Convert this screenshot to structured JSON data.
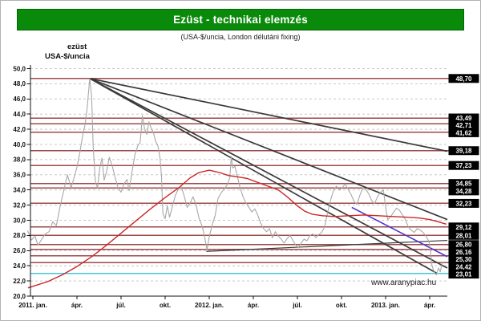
{
  "header": {
    "title": "Ezüst - technikai elemzés",
    "subtitle": "(USA-$/uncia, London délutáni fixing)"
  },
  "axis_corner": {
    "line1": "ezüst",
    "line2": "USA-$/uncia"
  },
  "footer": {
    "watermark": "www.aranypiac.hu"
  },
  "colors": {
    "banner_green": "#0a8a0a",
    "level_red": "#9c4a4a",
    "support_cyan": "#45c8d8",
    "trend_dark": "#3a3a3a",
    "trend_blue": "#4a35cc",
    "series_gray": "#a8a8a8",
    "ma_red": "#cd2626",
    "grid_dot": "#c8c8c8",
    "label_box_bg": "#000000",
    "label_box_text": "#ffffff",
    "axis_black": "#111111"
  },
  "chart_data": {
    "type": "line",
    "title": "Ezüst - technikai elemzés",
    "subtitle": "(USA-$/uncia, London délutáni fixing)",
    "ylabel": "USA-$/uncia",
    "xlabel": "",
    "ylim": [
      20,
      50
    ],
    "grid": "dotted horizontal every 2.0",
    "legend": "none",
    "x_ticks": [
      {
        "m": 0,
        "label": "2011. jan."
      },
      {
        "m": 3,
        "label": "ápr."
      },
      {
        "m": 6,
        "label": "júl."
      },
      {
        "m": 9,
        "label": "okt."
      },
      {
        "m": 12,
        "label": "2012. jan."
      },
      {
        "m": 15,
        "label": "ápr."
      },
      {
        "m": 18,
        "label": "júl."
      },
      {
        "m": 21,
        "label": "okt."
      },
      {
        "m": 24,
        "label": "2013. jan."
      },
      {
        "m": 27,
        "label": "ápr."
      }
    ],
    "y_ticks": [
      {
        "v": 20,
        "label": "20,0"
      },
      {
        "v": 22,
        "label": "22,0"
      },
      {
        "v": 24,
        "label": "24,0"
      },
      {
        "v": 26,
        "label": "26,0"
      },
      {
        "v": 28,
        "label": "28,0"
      },
      {
        "v": 30,
        "label": "30,0"
      },
      {
        "v": 32,
        "label": "32,0"
      },
      {
        "v": 34,
        "label": "34,0"
      },
      {
        "v": 36,
        "label": "36,0"
      },
      {
        "v": 38,
        "label": "38,0"
      },
      {
        "v": 40,
        "label": "40,0"
      },
      {
        "v": 42,
        "label": "42,0"
      },
      {
        "v": 44,
        "label": "44,0"
      },
      {
        "v": 46,
        "label": "46,0"
      },
      {
        "v": 48,
        "label": "48,0"
      },
      {
        "v": 50,
        "label": "50,0"
      }
    ],
    "levels": {
      "resistance_support": [
        48.7,
        43.49,
        42.71,
        41.62,
        39.18,
        37.23,
        34.85,
        34.28,
        32.23,
        29.12,
        28.01,
        26.8,
        26.16,
        25.3,
        24.42
      ],
      "cyan_support": 23.01
    },
    "price_labels": [
      {
        "text": "48,70",
        "value": 48.7
      },
      {
        "text": "43,49",
        "value": 43.49
      },
      {
        "text": "42,71",
        "value": 42.71
      },
      {
        "text": "41,62",
        "value": 41.62
      },
      {
        "text": "39,18",
        "value": 39.18
      },
      {
        "text": "37,23",
        "value": 37.23
      },
      {
        "text": "34,85",
        "value": 34.85
      },
      {
        "text": "34,28",
        "value": 34.28
      },
      {
        "text": "32,23",
        "value": 32.23
      },
      {
        "text": "29,12",
        "value": 29.12
      },
      {
        "text": "28,01",
        "value": 28.01
      },
      {
        "text": "26,80",
        "value": 26.8
      },
      {
        "text": "26,16",
        "value": 26.16
      },
      {
        "text": "25,30",
        "value": 25.3
      },
      {
        "text": "24,42",
        "value": 24.42
      },
      {
        "text": "23,01",
        "value": 23.01
      }
    ],
    "trendlines": [
      {
        "name": "fan-line-1",
        "style": "dark",
        "from": [
          3.87,
          48.7
        ],
        "to": [
          28.2,
          39.1
        ]
      },
      {
        "name": "fan-line-2",
        "style": "dark",
        "from": [
          3.87,
          48.7
        ],
        "to": [
          28.2,
          30.1
        ]
      },
      {
        "name": "fan-line-3",
        "style": "dark",
        "from": [
          3.87,
          48.7
        ],
        "to": [
          28.2,
          23.7
        ]
      },
      {
        "name": "fan-line-4",
        "style": "dark",
        "from": [
          3.87,
          48.7
        ],
        "to": [
          27.5,
          23.0
        ]
      },
      {
        "name": "rising-support-line",
        "style": "thin",
        "from": [
          11.8,
          25.9
        ],
        "to": [
          28.2,
          27.35
        ]
      },
      {
        "name": "blue-channel-line",
        "style": "blue",
        "from": [
          21.7,
          31.7
        ],
        "to": [
          28.2,
          25.2
        ]
      }
    ],
    "series": [
      {
        "name": "silver-london-pm-fixing",
        "color_key": "series_gray",
        "width": 1.1,
        "points": [
          [
            -0.35,
            28.6
          ],
          [
            -0.1,
            27.4
          ],
          [
            0.15,
            27.9
          ],
          [
            0.35,
            26.7
          ],
          [
            0.6,
            27.5
          ],
          [
            0.85,
            28.2
          ],
          [
            1.1,
            28.5
          ],
          [
            1.35,
            29.8
          ],
          [
            1.6,
            29.3
          ],
          [
            1.85,
            31.8
          ],
          [
            2.1,
            33.9
          ],
          [
            2.35,
            36.0
          ],
          [
            2.6,
            34.3
          ],
          [
            2.8,
            35.6
          ],
          [
            3.0,
            37.0
          ],
          [
            3.2,
            39.0
          ],
          [
            3.4,
            41.3
          ],
          [
            3.55,
            42.6
          ],
          [
            3.7,
            44.9
          ],
          [
            3.87,
            48.7
          ],
          [
            4.0,
            46.3
          ],
          [
            4.1,
            39.8
          ],
          [
            4.25,
            35.2
          ],
          [
            4.4,
            34.2
          ],
          [
            4.55,
            36.9
          ],
          [
            4.7,
            38.2
          ],
          [
            4.85,
            35.3
          ],
          [
            5.0,
            36.3
          ],
          [
            5.2,
            38.3
          ],
          [
            5.4,
            37.2
          ],
          [
            5.6,
            35.6
          ],
          [
            5.8,
            34.3
          ],
          [
            6.0,
            33.7
          ],
          [
            6.2,
            34.8
          ],
          [
            6.4,
            35.4
          ],
          [
            6.55,
            33.9
          ],
          [
            6.75,
            36.4
          ],
          [
            6.95,
            38.7
          ],
          [
            7.15,
            39.9
          ],
          [
            7.3,
            40.2
          ],
          [
            7.45,
            43.8
          ],
          [
            7.6,
            42.1
          ],
          [
            7.75,
            41.3
          ],
          [
            7.9,
            43.0
          ],
          [
            8.05,
            42.1
          ],
          [
            8.2,
            41.6
          ],
          [
            8.35,
            40.4
          ],
          [
            8.5,
            39.9
          ],
          [
            8.65,
            38.2
          ],
          [
            8.75,
            35.9
          ],
          [
            8.85,
            30.9
          ],
          [
            9.0,
            30.2
          ],
          [
            9.15,
            31.9
          ],
          [
            9.3,
            30.4
          ],
          [
            9.5,
            31.9
          ],
          [
            9.7,
            33.3
          ],
          [
            9.9,
            34.1
          ],
          [
            10.1,
            34.4
          ],
          [
            10.3,
            33.2
          ],
          [
            10.5,
            31.7
          ],
          [
            10.7,
            32.3
          ],
          [
            10.9,
            33.1
          ],
          [
            11.1,
            32.1
          ],
          [
            11.3,
            30.3
          ],
          [
            11.5,
            29.3
          ],
          [
            11.65,
            28.2
          ],
          [
            11.85,
            26.1
          ],
          [
            12.0,
            27.8
          ],
          [
            12.2,
            29.4
          ],
          [
            12.4,
            30.6
          ],
          [
            12.6,
            32.9
          ],
          [
            12.8,
            33.6
          ],
          [
            13.0,
            34.1
          ],
          [
            13.2,
            34.6
          ],
          [
            13.4,
            35.6
          ],
          [
            13.5,
            38.4
          ],
          [
            13.6,
            36.9
          ],
          [
            13.75,
            37.1
          ],
          [
            13.9,
            35.9
          ],
          [
            14.1,
            34.3
          ],
          [
            14.3,
            33.1
          ],
          [
            14.5,
            32.3
          ],
          [
            14.7,
            31.7
          ],
          [
            14.9,
            31.1
          ],
          [
            15.1,
            31.5
          ],
          [
            15.3,
            30.7
          ],
          [
            15.5,
            29.6
          ],
          [
            15.7,
            28.9
          ],
          [
            15.9,
            28.5
          ],
          [
            16.1,
            28.9
          ],
          [
            16.3,
            27.7
          ],
          [
            16.5,
            28.5
          ],
          [
            16.7,
            27.9
          ],
          [
            16.9,
            27.5
          ],
          [
            17.1,
            27.0
          ],
          [
            17.3,
            27.6
          ],
          [
            17.5,
            28.0
          ],
          [
            17.7,
            27.3
          ],
          [
            17.9,
            26.7
          ],
          [
            18.05,
            26.4
          ],
          [
            18.25,
            27.0
          ],
          [
            18.45,
            27.5
          ],
          [
            18.65,
            27.3
          ],
          [
            18.85,
            28.0
          ],
          [
            19.05,
            28.2
          ],
          [
            19.25,
            27.7
          ],
          [
            19.45,
            28.1
          ],
          [
            19.65,
            28.4
          ],
          [
            19.85,
            29.1
          ],
          [
            20.05,
            31.0
          ],
          [
            20.25,
            32.6
          ],
          [
            20.45,
            33.9
          ],
          [
            20.65,
            34.5
          ],
          [
            20.85,
            34.0
          ],
          [
            21.05,
            34.3
          ],
          [
            21.25,
            34.8
          ],
          [
            21.45,
            34.1
          ],
          [
            21.65,
            33.4
          ],
          [
            21.85,
            32.5
          ],
          [
            22.05,
            32.1
          ],
          [
            22.25,
            33.3
          ],
          [
            22.45,
            34.3
          ],
          [
            22.65,
            34.1
          ],
          [
            22.85,
            33.5
          ],
          [
            23.05,
            32.6
          ],
          [
            23.25,
            32.2
          ],
          [
            23.45,
            33.1
          ],
          [
            23.65,
            33.7
          ],
          [
            23.85,
            34.0
          ],
          [
            24.05,
            31.1
          ],
          [
            24.15,
            30.1
          ],
          [
            24.35,
            30.5
          ],
          [
            24.55,
            31.1
          ],
          [
            24.75,
            31.6
          ],
          [
            24.95,
            31.3
          ],
          [
            25.15,
            30.7
          ],
          [
            25.35,
            30.1
          ],
          [
            25.55,
            29.1
          ],
          [
            25.75,
            28.7
          ],
          [
            25.95,
            28.4
          ],
          [
            26.15,
            28.9
          ],
          [
            26.35,
            28.7
          ],
          [
            26.55,
            28.4
          ],
          [
            26.75,
            27.9
          ],
          [
            26.95,
            27.2
          ],
          [
            27.05,
            26.0
          ],
          [
            27.15,
            24.1
          ],
          [
            27.3,
            23.2
          ],
          [
            27.45,
            22.8
          ],
          [
            27.6,
            23.7
          ],
          [
            27.72,
            23.2
          ],
          [
            27.85,
            24.4
          ]
        ]
      },
      {
        "name": "moving-average",
        "color_key": "ma_red",
        "width": 1.4,
        "points": [
          [
            -0.3,
            21.1
          ],
          [
            1,
            21.9
          ],
          [
            2,
            22.8
          ],
          [
            3,
            23.9
          ],
          [
            4,
            25.2
          ],
          [
            5,
            26.7
          ],
          [
            6,
            28.3
          ],
          [
            7,
            29.9
          ],
          [
            8,
            31.5
          ],
          [
            9,
            33.0
          ],
          [
            10,
            34.4
          ],
          [
            10.7,
            35.6
          ],
          [
            11.3,
            36.3
          ],
          [
            12,
            36.6
          ],
          [
            12.7,
            36.3
          ],
          [
            13.3,
            35.9
          ],
          [
            14,
            35.7
          ],
          [
            14.6,
            35.5
          ],
          [
            15.3,
            35.0
          ],
          [
            16,
            34.5
          ],
          [
            16.7,
            34.0
          ],
          [
            17.3,
            33.1
          ],
          [
            18,
            31.9
          ],
          [
            18.5,
            31.2
          ],
          [
            19,
            30.8
          ],
          [
            19.7,
            30.6
          ],
          [
            20.5,
            30.5
          ],
          [
            21.5,
            30.6
          ],
          [
            22.5,
            30.7
          ],
          [
            23.5,
            30.6
          ],
          [
            24.5,
            30.5
          ],
          [
            25.5,
            30.4
          ],
          [
            26.3,
            30.3
          ],
          [
            27,
            30.1
          ],
          [
            27.6,
            29.8
          ],
          [
            28.1,
            29.5
          ]
        ]
      }
    ]
  }
}
